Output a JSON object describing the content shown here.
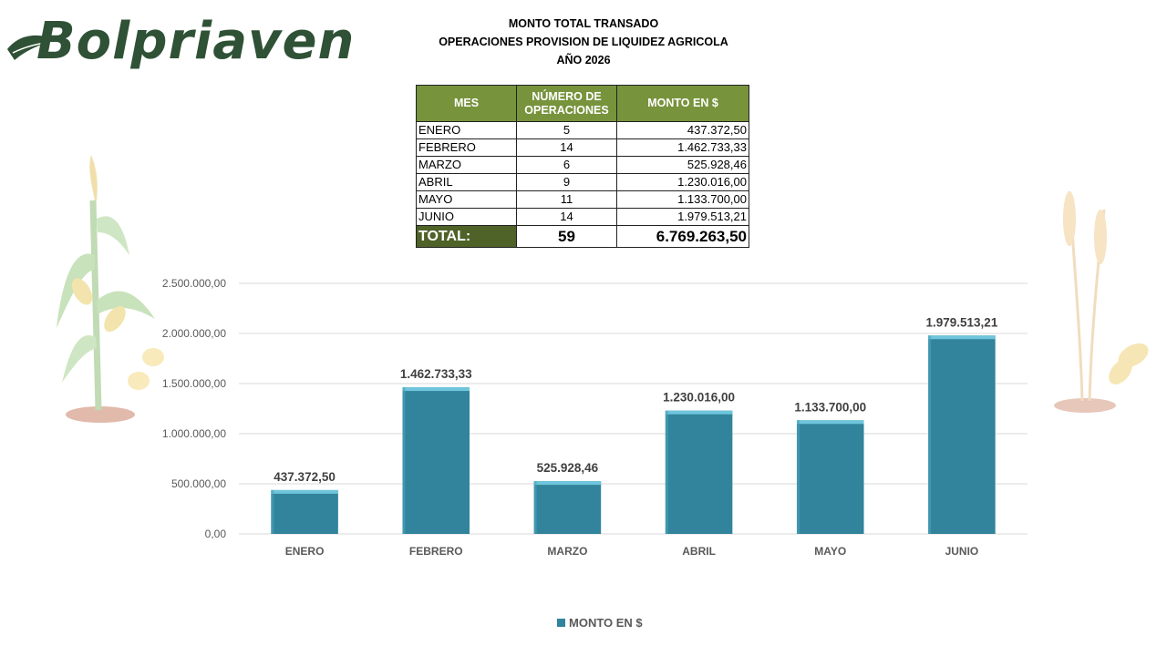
{
  "brand": {
    "name": "Bolpriaven"
  },
  "titles": {
    "line1": "MONTO TOTAL TRANSADO",
    "line2": "OPERACIONES PROVISION DE LIQUIDEZ AGRICOLA",
    "line3": "AÑO 2026"
  },
  "table": {
    "headers": {
      "mes": "MES",
      "ops_line1": "NÚMERO DE",
      "ops_line2": "OPERACIONES",
      "monto": "MONTO EN $"
    },
    "rows": [
      {
        "mes": "ENERO",
        "ops": "5",
        "monto": "437.372,50"
      },
      {
        "mes": "FEBRERO",
        "ops": "14",
        "monto": "1.462.733,33"
      },
      {
        "mes": "MARZO",
        "ops": "6",
        "monto": "525.928,46"
      },
      {
        "mes": "ABRIL",
        "ops": "9",
        "monto": "1.230.016,00"
      },
      {
        "mes": "MAYO",
        "ops": "11",
        "monto": "1.133.700,00"
      },
      {
        "mes": "JUNIO",
        "ops": "14",
        "monto": "1.979.513,21"
      }
    ],
    "total": {
      "label": "TOTAL:",
      "ops": "59",
      "monto": "6.769.263,50"
    }
  },
  "colors": {
    "bar": "#31849b",
    "bar_top": "#6fc6dc",
    "header": "#77933c",
    "total_label": "#4f6228",
    "brand": "#2f5136"
  },
  "chart_data": {
    "type": "bar",
    "categories": [
      "ENERO",
      "FEBRERO",
      "MARZO",
      "ABRIL",
      "MAYO",
      "JUNIO"
    ],
    "series": [
      {
        "name": "MONTO EN $",
        "values": [
          437372.5,
          1462733.33,
          525928.46,
          1230016.0,
          1133700.0,
          1979513.21
        ],
        "labels": [
          "437.372,50",
          "1.462.733,33",
          "525.928,46",
          "1.230.016,00",
          "1.133.700,00",
          "1.979.513,21"
        ]
      }
    ],
    "ylim": [
      0,
      2500000
    ],
    "yticks": [
      0,
      500000,
      1000000,
      1500000,
      2000000,
      2500000
    ],
    "ytick_labels": [
      "0,00",
      "500.000,00",
      "1.000.000,00",
      "1.500.000,00",
      "2.000.000,00",
      "2.500.000,00"
    ],
    "grid": true,
    "legend": "bottom"
  }
}
